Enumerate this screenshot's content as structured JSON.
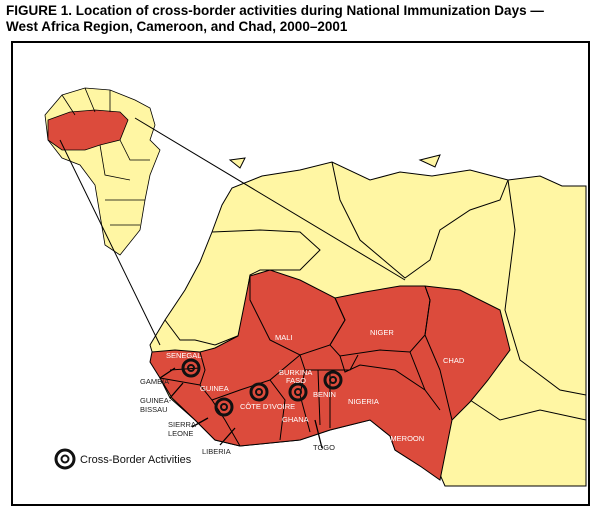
{
  "figure": {
    "title_line1": "FIGURE 1. Location of cross-border activities during National Immunization Days —",
    "title_line2": "West Africa Region, Cameroon, and Chad, 2000–2001"
  },
  "colors": {
    "highlighted_country": "#dc4b3c",
    "other_land": "#fff6a3",
    "water": "#ffffff",
    "border": "#000000"
  },
  "countries_highlighted": {
    "mali": "MALI",
    "niger": "NIGER",
    "chad": "CHAD",
    "senegal": "SENEGAL",
    "guinea": "GUINEA",
    "burkina_faso_1": "BURKINA",
    "burkina_faso_2": "FASO",
    "cote_divoire": "CÔTE D'IVOIRE",
    "ghana": "GHANA",
    "benin": "BENIN",
    "nigeria": "NIGERIA",
    "cameroon": "CAMEROON"
  },
  "callouts": {
    "gambia": "GAMBIA",
    "guinea_bissau_1": "GUINEA-",
    "guinea_bissau_2": "BISSAU",
    "sierra_leone_1": "SIERRA",
    "sierra_leone_2": "LEONE",
    "liberia": "LIBERIA",
    "togo": "TOGO"
  },
  "legend": {
    "icon": "target-icon",
    "label": "Cross-Border Activities"
  }
}
